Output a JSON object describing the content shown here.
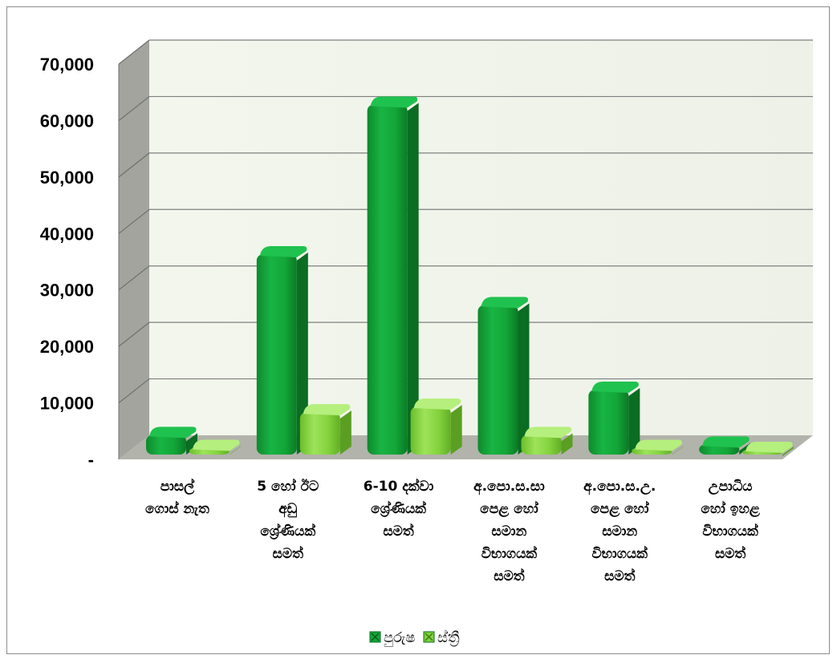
{
  "chart_data": {
    "type": "bar",
    "title": "",
    "xlabel": "",
    "ylabel": "",
    "ylim": [
      0,
      70000
    ],
    "yticks": [
      0,
      10000,
      20000,
      30000,
      40000,
      50000,
      60000,
      70000
    ],
    "ytick_labels": [
      "-",
      "10,000",
      "20,000",
      "30,000",
      "40,000",
      "50,000",
      "60,000",
      "70,000"
    ],
    "grid": true,
    "legend_position": "bottom",
    "categories": [
      [
        "පාසල්",
        "ගොස් නැත"
      ],
      [
        "5 හෝ ඊට",
        "අඩු",
        "ශ්‍රේණියක්",
        "සමත්"
      ],
      [
        "6-10 දක්වා",
        "ශ්‍රේණියක්",
        "සමත්"
      ],
      [
        "අ.පො.ස.සා",
        "පෙළ හෝ",
        "සමාන",
        "විභාගයක්",
        "සමත්"
      ],
      [
        "අ.පො.ස.උ.",
        "පෙළ හෝ",
        "සමාන",
        "විභාගයක්",
        "සමත්"
      ],
      [
        "උපාධිය",
        "හෝ ඉහළ",
        "විභාගයක්",
        "සමත්"
      ]
    ],
    "series": [
      {
        "name": "පුරුෂ",
        "color": "#13a638",
        "values": [
          3500,
          35500,
          62000,
          26500,
          11500,
          1800
        ]
      },
      {
        "name": "ස්ත්‍රී",
        "color": "#7fd13b",
        "values": [
          1200,
          7500,
          8500,
          3500,
          1200,
          150
        ]
      }
    ]
  }
}
